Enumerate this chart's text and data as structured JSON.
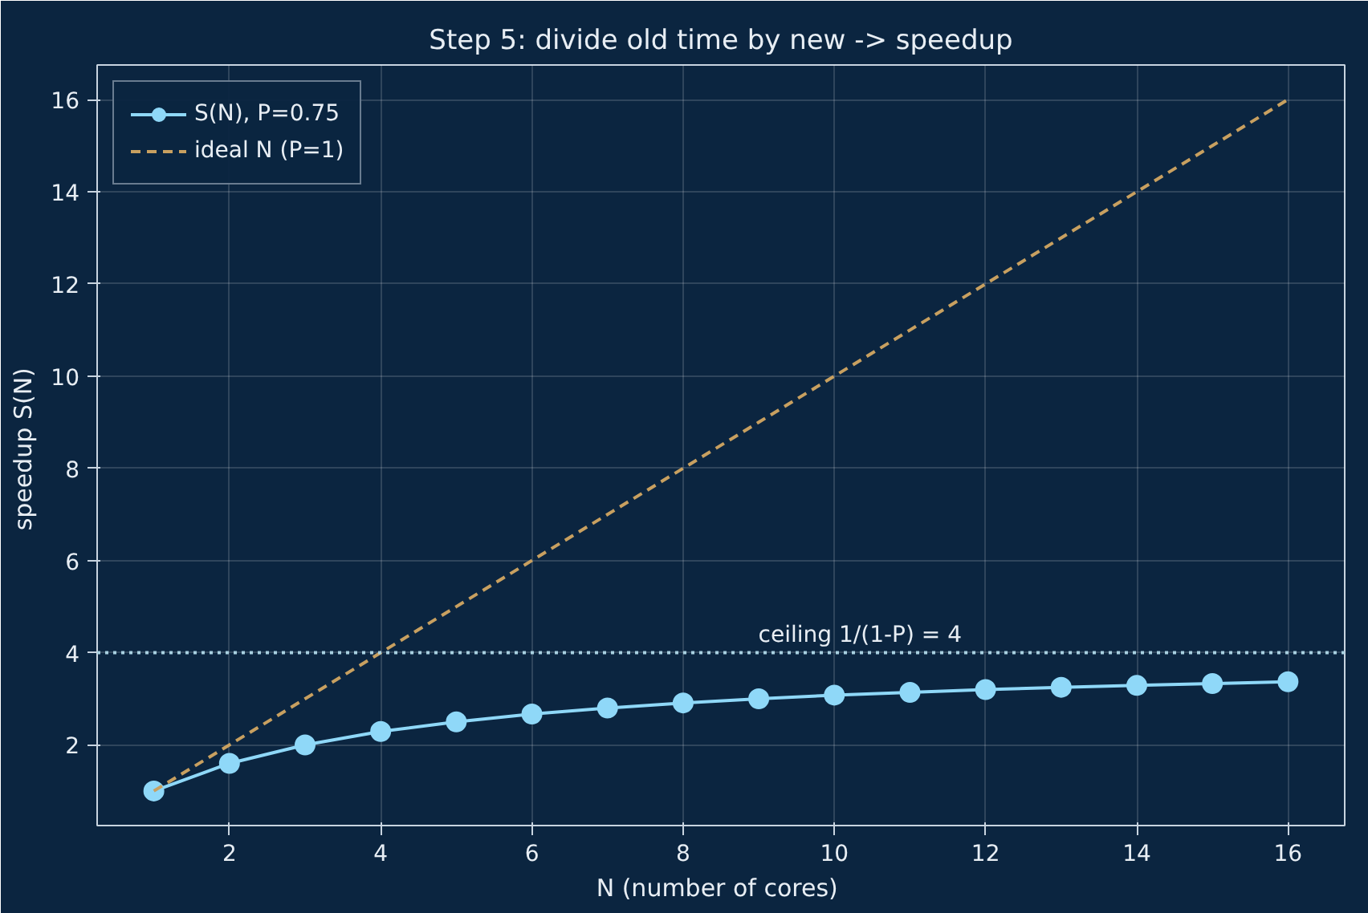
{
  "chart_data": {
    "type": "line",
    "title": "Step 5: divide old time by new -> speedup",
    "xlabel": "N  (number of cores)",
    "ylabel": "speedup  S(N)",
    "x": [
      1,
      2,
      3,
      4,
      5,
      6,
      7,
      8,
      9,
      10,
      11,
      12,
      13,
      14,
      15,
      16
    ],
    "series": [
      {
        "name": "S(N), P=0.75",
        "color": "#8fd8f8",
        "marker": "circle",
        "line_style": "solid",
        "values": [
          1,
          1.6,
          2,
          2.29,
          2.5,
          2.67,
          2.8,
          2.91,
          3,
          3.08,
          3.14,
          3.2,
          3.25,
          3.29,
          3.33,
          3.37
        ]
      },
      {
        "name": "ideal N (P=1)",
        "color": "#c8a060",
        "marker": "none",
        "line_style": "dashed",
        "values": [
          1,
          2,
          3,
          4,
          5,
          6,
          7,
          8,
          9,
          10,
          11,
          12,
          13,
          14,
          15,
          16
        ]
      }
    ],
    "xlim": [
      0.25,
      16.75
    ],
    "ylim": [
      0.25,
      16.75
    ],
    "xticks": [
      2,
      4,
      6,
      8,
      10,
      12,
      14,
      16
    ],
    "yticks": [
      2,
      4,
      6,
      8,
      10,
      12,
      14,
      16
    ],
    "ref_lines": [
      {
        "axis": "y",
        "value": 4,
        "label": "ceiling 1/(1-P) = 4",
        "color": "#a8d0e0",
        "line_style": "dotted"
      }
    ],
    "grid": true,
    "legend": "top left"
  }
}
